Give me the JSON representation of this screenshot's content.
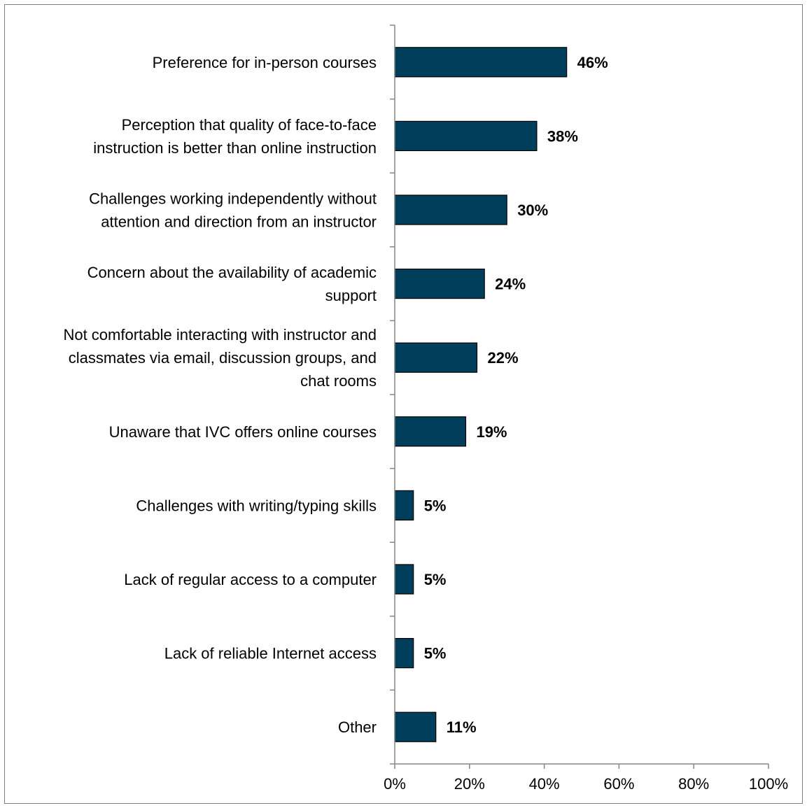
{
  "chart_data": {
    "type": "bar",
    "orientation": "horizontal",
    "categories": [
      [
        "Preference for in-person courses"
      ],
      [
        "Perception that quality of face-to-face",
        "instruction is better than online instruction"
      ],
      [
        "Challenges working independently without",
        "attention and direction from an instructor"
      ],
      [
        "Concern about the availability of academic",
        "support"
      ],
      [
        "Not comfortable interacting with instructor and",
        "classmates via email, discussion groups, and",
        "chat rooms"
      ],
      [
        "Unaware that IVC offers online courses"
      ],
      [
        "Challenges with writing/typing skills"
      ],
      [
        "Lack of regular access to a computer"
      ],
      [
        "Lack of reliable Internet access"
      ],
      [
        "Other"
      ]
    ],
    "values": [
      46,
      38,
      30,
      24,
      22,
      19,
      5,
      5,
      5,
      11
    ],
    "data_labels": [
      "46%",
      "38%",
      "30%",
      "24%",
      "22%",
      "19%",
      "5%",
      "5%",
      "5%",
      "11%"
    ],
    "xlim": [
      0,
      100
    ],
    "x_ticks": [
      0,
      20,
      40,
      60,
      80,
      100
    ],
    "x_tick_labels": [
      "0%",
      "20%",
      "40%",
      "60%",
      "80%",
      "100%"
    ],
    "title": "",
    "xlabel": "",
    "ylabel": "",
    "grid": false,
    "colors": {
      "bar_fill": "#003F5C",
      "bar_stroke": "#000000",
      "axis": "#868686"
    }
  }
}
